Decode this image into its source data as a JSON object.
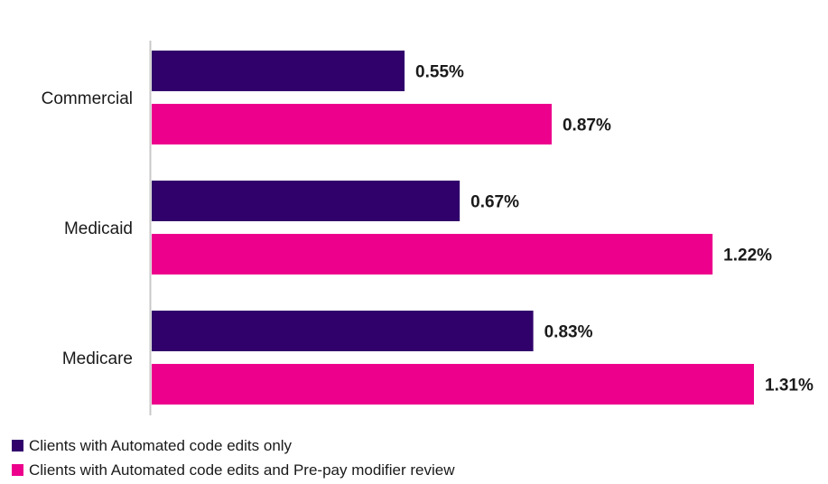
{
  "chart_data": {
    "type": "bar",
    "orientation": "horizontal",
    "categories": [
      "Commercial",
      "Medicaid",
      "Medicare"
    ],
    "series": [
      {
        "name": "Clients with Automated code edits only",
        "color": "#30006b",
        "values": [
          0.55,
          0.67,
          0.83
        ],
        "labels": [
          "0.55%",
          "0.67%",
          "0.83%"
        ]
      },
      {
        "name": "Clients with Automated code edits and Pre-pay modifier review",
        "color": "#ec008c",
        "values": [
          0.87,
          1.22,
          1.31
        ],
        "labels": [
          "0.87%",
          "1.22%",
          "1.31%"
        ]
      }
    ],
    "xlim": [
      0,
      1.31
    ],
    "grid": false,
    "legend_position": "bottom-left",
    "unit": "%"
  }
}
